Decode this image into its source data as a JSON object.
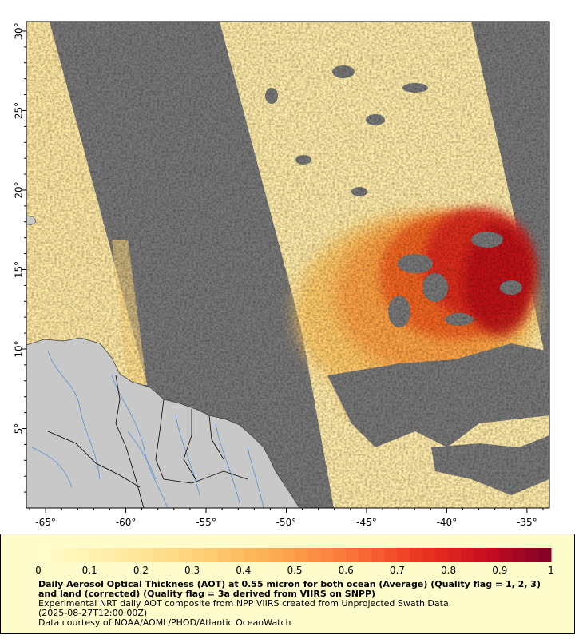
{
  "map": {
    "lat_ticks": [
      {
        "value": 5,
        "label": "5°"
      },
      {
        "value": 10,
        "label": "10°"
      },
      {
        "value": 15,
        "label": "15°"
      },
      {
        "value": 20,
        "label": "20°"
      },
      {
        "value": 25,
        "label": "25°"
      },
      {
        "value": 30,
        "label": "30°"
      }
    ],
    "lon_ticks": [
      {
        "value": -65,
        "label": "-65°"
      },
      {
        "value": -60,
        "label": "-60°"
      },
      {
        "value": -55,
        "label": "-55°"
      },
      {
        "value": -50,
        "label": "-50°"
      },
      {
        "value": -45,
        "label": "-45°"
      },
      {
        "value": -40,
        "label": "-40°"
      },
      {
        "value": -35,
        "label": "-35°"
      }
    ],
    "lon_range": [
      -66.2,
      -33.6
    ],
    "lat_range": [
      0,
      30.6
    ],
    "colors": {
      "no_data": "#777777",
      "land": "#c8c8c8",
      "coastline": "#444444",
      "rivers": "#5b8fd6",
      "borders": "#000000"
    }
  },
  "legend": {
    "colorbar_labels": [
      "0",
      "0.1",
      "0.2",
      "0.3",
      "0.4",
      "0.5",
      "0.6",
      "0.7",
      "0.8",
      "0.9",
      "1"
    ],
    "colorbar_min": 0,
    "colorbar_max": 1,
    "title": "Daily Aerosol Optical Thickness (AOT) at 0.55 micron for both ocean (Average) (Quality flag = 1, 2, 3) and land (corrected) (Quality flag = 3a derived from VIIRS on SNPP)",
    "subtitle": "Experimental NRT daily AOT composite from NPP VIIRS created from Unprojected Swath Data.",
    "date": "(2025-08-27T12:00:00Z)",
    "credit": "Data courtesy of NOAA/AOML/PHOD/Atlantic OceanWatch"
  }
}
